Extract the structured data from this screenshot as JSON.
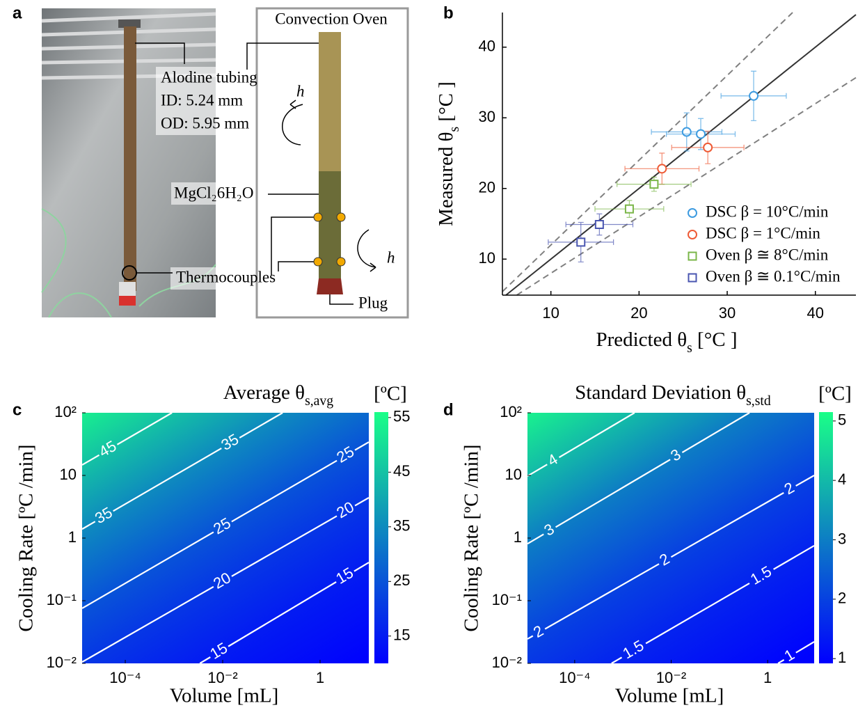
{
  "panel_labels": [
    "a",
    "b",
    "c",
    "d"
  ],
  "schematic": {
    "oven": "Convection Oven",
    "tubing": "Alodine tubing",
    "inner_diameter": "ID: 5.24 mm",
    "outer_diameter": "OD: 5.95 mm",
    "h_top": "h",
    "h_bottom": "h",
    "salt": "MgCl₂6H₂O",
    "thermocouples": "Thermocouples",
    "plug": "Plug"
  },
  "chart_data": [
    {
      "type": "scatter",
      "xlabel": [
        "Predicted θ",
        "s",
        " [°C ]"
      ],
      "ylabel": [
        "Measured θ",
        "s",
        " [°C ]"
      ],
      "xlim": [
        4.5,
        44.6
      ],
      "ylim": [
        4.9,
        44.9
      ],
      "xticks": [
        10,
        20,
        30,
        40
      ],
      "yticks": [
        10,
        20,
        30,
        40
      ],
      "reference_lines": [
        {
          "slope": 1,
          "dash": false,
          "color": "#333333"
        },
        {
          "slope": 1.2,
          "dash": true,
          "color": "#808080"
        },
        {
          "slope": 0.8,
          "dash": true,
          "color": "#808080"
        }
      ],
      "legend": "lower right",
      "series": [
        {
          "name": "DSC  β = 10°C/min",
          "color": "#3d9be0",
          "marker": "circle",
          "x": [
            25.4,
            27.0,
            33.0
          ],
          "values": [
            28.0,
            27.7,
            33.1
          ],
          "xerr": [
            4.0,
            3.9,
            3.7
          ],
          "yerr": [
            2.7,
            2.2,
            3.5
          ]
        },
        {
          "name": "DSC  β = 1°C/min",
          "color": "#ee5a35",
          "marker": "circle",
          "x": [
            22.6,
            27.8
          ],
          "values": [
            22.8,
            25.8
          ],
          "xerr": [
            4.2,
            4.1
          ],
          "yerr": [
            2.2,
            2.3
          ]
        },
        {
          "name": "Oven  β ≅ 8°C/min",
          "color": "#7ab648",
          "marker": "square",
          "x": [
            21.7,
            18.9
          ],
          "values": [
            20.6,
            17.1
          ],
          "xerr": [
            4.2,
            3.9
          ],
          "yerr": [
            1.0,
            1.2
          ]
        },
        {
          "name": "Oven  β ≅ 0.1°C/min",
          "color": "#4a56b0",
          "marker": "square",
          "x": [
            15.5,
            13.4
          ],
          "values": [
            14.9,
            12.4
          ],
          "xerr": [
            3.8,
            3.7
          ],
          "yerr": [
            1.5,
            2.8
          ]
        }
      ]
    },
    {
      "type": "contour",
      "title": [
        "Average θ",
        "s,avg"
      ],
      "xlabel": "Volume [mL]",
      "ylabel": "Cooling Rate [ºC /min]",
      "xscale": "log",
      "yscale": "log",
      "xlim": [
        1.3e-05,
        10
      ],
      "ylim": [
        0.01,
        100
      ],
      "xticks": [
        {
          "value": 0.0001,
          "label": "10⁻⁴"
        },
        {
          "value": 0.01,
          "label": "10⁻²"
        },
        1
      ],
      "yticks": [
        {
          "value": 0.01,
          "label": "10⁻²"
        },
        {
          "value": 0.1,
          "label": "10⁻¹"
        },
        1,
        10,
        {
          "value": 100,
          "label": "10²"
        }
      ],
      "colormap": [
        "#0000ff",
        "#1aff88"
      ],
      "contour_color": "#ffffff",
      "colorbar": {
        "label": "[ºC]",
        "clim": [
          10,
          56
        ],
        "ticks": [
          15,
          25,
          35,
          45,
          55
        ]
      },
      "contours": [
        {
          "level": 45,
          "x": [
            1.3e-05,
            0.00091
          ],
          "y": [
            14.7,
            100
          ]
        },
        {
          "level": 35,
          "x": [
            1.3e-05,
            0.17
          ],
          "y": [
            1.39,
            100
          ]
        },
        {
          "level": 25,
          "x": [
            1.3e-05,
            10
          ],
          "y": [
            0.0755,
            34.1
          ]
        },
        {
          "level": 20,
          "x": [
            1.3e-05,
            10
          ],
          "y": [
            0.0105,
            4.41
          ]
        },
        {
          "level": 15,
          "x": [
            0.0034,
            10
          ],
          "y": [
            0.01,
            0.408
          ]
        }
      ]
    },
    {
      "type": "contour",
      "title": [
        "Standard Deviation θ",
        "s,std"
      ],
      "xlabel": "Volume [mL]",
      "ylabel": "Cooling Rate [ºC /min]",
      "xscale": "log",
      "yscale": "log",
      "xlim": [
        1.05e-05,
        9.2
      ],
      "ylim": [
        0.01,
        100
      ],
      "xticks": [
        {
          "value": 0.0001,
          "label": "10⁻⁴"
        },
        {
          "value": 0.01,
          "label": "10⁻²"
        },
        1
      ],
      "yticks": [
        {
          "value": 0.01,
          "label": "10⁻²"
        },
        {
          "value": 0.1,
          "label": "10⁻¹"
        },
        1,
        10,
        {
          "value": 100,
          "label": "10²"
        }
      ],
      "colormap": [
        "#0000ff",
        "#1aff88"
      ],
      "contour_color": "#ffffff",
      "colorbar": {
        "label": "[ºC]",
        "clim": [
          0.92,
          5.15
        ],
        "ticks": [
          1,
          2,
          3,
          4,
          5
        ]
      },
      "contours": [
        {
          "level": 4,
          "x": [
            1.05e-05,
            0.00174
          ],
          "y": [
            9.75,
            100
          ]
        },
        {
          "level": 3,
          "x": [
            1.05e-05,
            0.42
          ],
          "y": [
            0.81,
            100
          ]
        },
        {
          "level": 2,
          "x": [
            1.05e-05,
            9.2
          ],
          "y": [
            0.0245,
            10
          ]
        },
        {
          "level": 1.5,
          "x": [
            0.00058,
            9.2
          ],
          "y": [
            0.01,
            0.755
          ]
        },
        {
          "level": 1,
          "x": [
            1.64,
            9.2
          ],
          "y": [
            0.01,
            0.0221
          ]
        }
      ]
    }
  ]
}
